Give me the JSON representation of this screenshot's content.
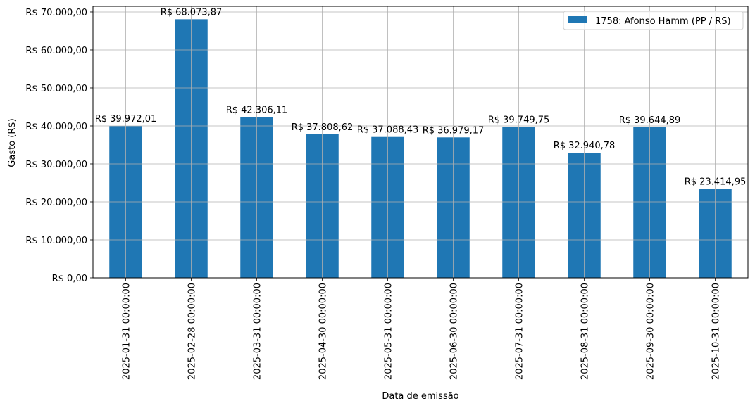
{
  "chart_data": {
    "type": "bar",
    "title": "",
    "xlabel": "Data de emissão",
    "ylabel": "Gasto (R$)",
    "ylim": [
      0,
      71477.56
    ],
    "yticks": [
      0,
      10000,
      20000,
      30000,
      40000,
      50000,
      60000,
      70000
    ],
    "ytick_labels": [
      "R$ 0,00",
      "R$ 10.000,00",
      "R$ 20.000,00",
      "R$ 30.000,00",
      "R$ 40.000,00",
      "R$ 50.000,00",
      "R$ 60.000,00",
      "R$ 70.000,00"
    ],
    "grid": true,
    "legend_position": "top-right",
    "categories": [
      "2025-01-31 00:00:00",
      "2025-02-28 00:00:00",
      "2025-03-31 00:00:00",
      "2025-04-30 00:00:00",
      "2025-05-31 00:00:00",
      "2025-06-30 00:00:00",
      "2025-07-31 00:00:00",
      "2025-08-31 00:00:00",
      "2025-09-30 00:00:00",
      "2025-10-31 00:00:00"
    ],
    "series": [
      {
        "name": "1758: Afonso Hamm (PP / RS)",
        "color": "#1f77b4",
        "values": [
          39972.01,
          68073.87,
          42306.11,
          37808.62,
          37088.43,
          36979.17,
          39749.75,
          32940.78,
          39644.89,
          23414.95
        ],
        "data_labels": [
          "R$ 39.972,01",
          "R$ 68.073,87",
          "R$ 42.306,11",
          "R$ 37.808,62",
          "R$ 37.088,43",
          "R$ 36.979,17",
          "R$ 39.749,75",
          "R$ 32.940,78",
          "R$ 39.644,89",
          "R$ 23.414,95"
        ]
      }
    ]
  }
}
